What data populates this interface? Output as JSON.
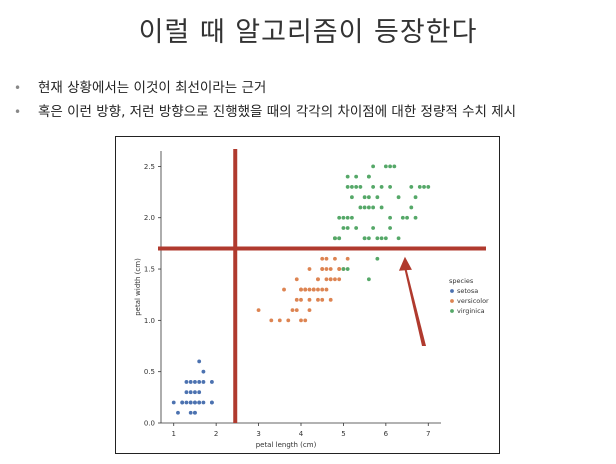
{
  "slide": {
    "title": "이럴 때 알고리즘이 등장한다",
    "bullets": [
      "현재 상황에서는 이것이 최선이라는 근거",
      "혹은 이런 방향, 저런 방향으로 진행했을 때의 각각의 차이점에 대한 정량적 수치 제시"
    ]
  },
  "colors": {
    "setosa": "#4c72b0",
    "versicolor": "#dd8452",
    "virginica": "#55a868",
    "annotation": "#b03a2e"
  },
  "chart_data": {
    "type": "scatter",
    "title": "",
    "xlabel": "petal length (cm)",
    "ylabel": "petal width (cm)",
    "xlim": [
      0.7,
      7.3
    ],
    "ylim": [
      0,
      2.65
    ],
    "xticks": [
      "1",
      "2",
      "3",
      "4",
      "5",
      "6",
      "7"
    ],
    "yticks": [
      "0.0",
      "0.5",
      "1.0",
      "1.5",
      "2.0",
      "2.5"
    ],
    "xtick_values": [
      1,
      2,
      3,
      4,
      5,
      6,
      7
    ],
    "ytick_values": [
      0,
      0.5,
      1.0,
      1.5,
      2.0,
      2.5
    ],
    "grid": false,
    "legend": {
      "title": "species",
      "placement": "right",
      "entries": [
        "setosa",
        "versicolor",
        "virginica"
      ]
    },
    "series": [
      {
        "name": "setosa",
        "points": [
          [
            1.4,
            0.2
          ],
          [
            1.3,
            0.2
          ],
          [
            1.5,
            0.2
          ],
          [
            1.7,
            0.4
          ],
          [
            1.4,
            0.3
          ],
          [
            1.5,
            0.1
          ],
          [
            1.6,
            0.2
          ],
          [
            1.1,
            0.1
          ],
          [
            1.2,
            0.2
          ],
          [
            1.0,
            0.2
          ],
          [
            1.7,
            0.5
          ],
          [
            1.9,
            0.2
          ],
          [
            1.6,
            0.4
          ],
          [
            1.9,
            0.4
          ],
          [
            1.5,
            0.3
          ],
          [
            1.3,
            0.3
          ],
          [
            1.6,
            0.6
          ],
          [
            1.4,
            0.1
          ],
          [
            1.6,
            0.2
          ],
          [
            1.2,
            0.2
          ],
          [
            1.5,
            0.4
          ],
          [
            1.3,
            0.4
          ],
          [
            1.4,
            0.4
          ],
          [
            1.6,
            0.3
          ],
          [
            1.5,
            0.2
          ],
          [
            1.7,
            0.2
          ],
          [
            1.5,
            0.1
          ],
          [
            1.4,
            0.2
          ],
          [
            1.9,
            0.2
          ]
        ]
      },
      {
        "name": "versicolor",
        "points": [
          [
            4.7,
            1.4
          ],
          [
            4.5,
            1.5
          ],
          [
            4.9,
            1.5
          ],
          [
            4.0,
            1.3
          ],
          [
            4.6,
            1.5
          ],
          [
            3.3,
            1.0
          ],
          [
            4.6,
            1.3
          ],
          [
            3.9,
            1.4
          ],
          [
            3.5,
            1.0
          ],
          [
            4.2,
            1.5
          ],
          [
            4.0,
            1.0
          ],
          [
            4.7,
            1.4
          ],
          [
            3.6,
            1.3
          ],
          [
            4.4,
            1.4
          ],
          [
            4.5,
            1.5
          ],
          [
            4.1,
            1.0
          ],
          [
            4.8,
            1.8
          ],
          [
            4.0,
            1.3
          ],
          [
            4.9,
            1.5
          ],
          [
            4.7,
            1.2
          ],
          [
            4.3,
            1.3
          ],
          [
            4.4,
            1.4
          ],
          [
            5.0,
            1.7
          ],
          [
            3.8,
            1.1
          ],
          [
            3.7,
            1.0
          ],
          [
            3.9,
            1.2
          ],
          [
            5.1,
            1.6
          ],
          [
            4.5,
            1.6
          ],
          [
            4.7,
            1.5
          ],
          [
            4.4,
            1.3
          ],
          [
            4.1,
            1.3
          ],
          [
            4.0,
            1.2
          ],
          [
            4.2,
            1.3
          ],
          [
            4.3,
            1.3
          ],
          [
            3.0,
            1.1
          ],
          [
            4.1,
            1.3
          ],
          [
            3.9,
            1.1
          ],
          [
            4.8,
            1.4
          ],
          [
            4.6,
            1.4
          ],
          [
            4.2,
            1.2
          ],
          [
            4.9,
            1.4
          ],
          [
            4.2,
            1.1
          ],
          [
            4.5,
            1.3
          ],
          [
            4.8,
            1.6
          ],
          [
            5.0,
            1.5
          ],
          [
            4.5,
            1.2
          ],
          [
            4.4,
            1.2
          ],
          [
            4.6,
            1.6
          ]
        ]
      },
      {
        "name": "virginica",
        "points": [
          [
            6.0,
            2.5
          ],
          [
            5.1,
            1.9
          ],
          [
            5.9,
            2.1
          ],
          [
            5.6,
            1.8
          ],
          [
            5.8,
            2.2
          ],
          [
            6.6,
            2.1
          ],
          [
            4.5,
            1.7
          ],
          [
            6.3,
            1.8
          ],
          [
            5.8,
            1.8
          ],
          [
            6.1,
            2.5
          ],
          [
            5.1,
            2.0
          ],
          [
            5.3,
            1.9
          ],
          [
            5.5,
            2.1
          ],
          [
            5.0,
            2.0
          ],
          [
            5.1,
            2.4
          ],
          [
            5.3,
            2.3
          ],
          [
            5.5,
            1.8
          ],
          [
            6.7,
            2.2
          ],
          [
            6.9,
            2.3
          ],
          [
            5.0,
            1.5
          ],
          [
            5.7,
            2.3
          ],
          [
            4.9,
            2.0
          ],
          [
            6.7,
            2.0
          ],
          [
            4.9,
            1.8
          ],
          [
            5.7,
            2.1
          ],
          [
            6.0,
            1.8
          ],
          [
            4.8,
            1.8
          ],
          [
            4.9,
            1.8
          ],
          [
            5.6,
            2.1
          ],
          [
            5.8,
            1.6
          ],
          [
            6.1,
            1.9
          ],
          [
            6.4,
            2.0
          ],
          [
            5.6,
            2.2
          ],
          [
            5.1,
            1.5
          ],
          [
            5.6,
            1.4
          ],
          [
            6.1,
            2.3
          ],
          [
            5.6,
            2.4
          ],
          [
            5.5,
            1.8
          ],
          [
            4.8,
            1.8
          ],
          [
            5.4,
            2.1
          ],
          [
            5.6,
            2.4
          ],
          [
            5.1,
            2.3
          ],
          [
            5.9,
            2.3
          ],
          [
            5.7,
            2.5
          ],
          [
            5.2,
            2.3
          ],
          [
            5.0,
            1.9
          ],
          [
            5.2,
            2.0
          ],
          [
            5.4,
            2.3
          ],
          [
            6.3,
            2.2
          ],
          [
            6.5,
            2.0
          ],
          [
            5.5,
            2.2
          ],
          [
            5.3,
            2.4
          ],
          [
            6.2,
            2.5
          ],
          [
            5.9,
            1.8
          ],
          [
            6.6,
            2.3
          ],
          [
            7.0,
            2.3
          ],
          [
            5.2,
            2.2
          ],
          [
            5.7,
            1.9
          ],
          [
            6.1,
            2.0
          ],
          [
            6.8,
            2.3
          ]
        ]
      }
    ],
    "annotations": {
      "vertical_line_x": 2.45,
      "horizontal_line_y": 1.7,
      "arrow": {
        "from": [
          6.9,
          0.75
        ],
        "to": [
          6.45,
          1.62
        ]
      }
    }
  }
}
